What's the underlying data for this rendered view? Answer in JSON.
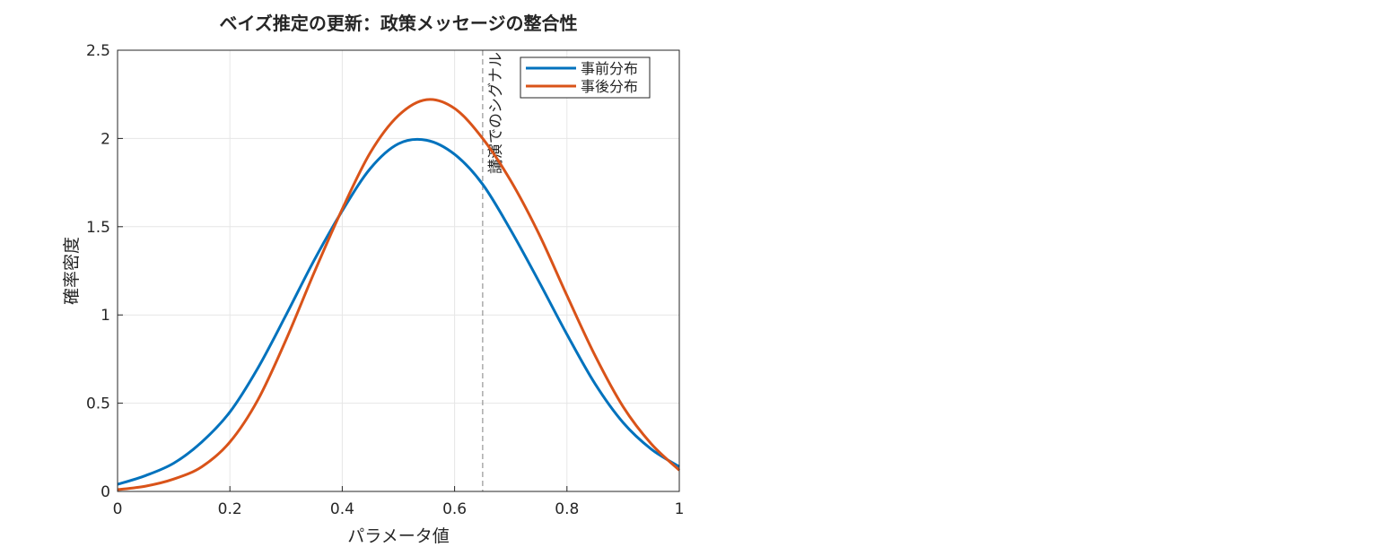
{
  "chart_data": {
    "type": "line",
    "title": "ベイズ推定の更新：政策メッセージの整合性",
    "xlabel": "パラメータ値",
    "ylabel": "確率密度",
    "xlim": [
      0,
      1
    ],
    "ylim": [
      0,
      2.5
    ],
    "grid": true,
    "x_ticks": [
      0,
      0.2,
      0.4,
      0.6,
      0.8,
      1
    ],
    "y_ticks": [
      0,
      0.5,
      1,
      1.5,
      2,
      2.5
    ],
    "x_tick_labels": [
      "0",
      "0.2",
      "0.4",
      "0.6",
      "0.8",
      "1"
    ],
    "y_tick_labels": [
      "0",
      "0.5",
      "1",
      "1.5",
      "2",
      "2.5"
    ],
    "legend_position": "top-right",
    "x": [
      0,
      0.05,
      0.1,
      0.15,
      0.2,
      0.25,
      0.3,
      0.35,
      0.4,
      0.45,
      0.5,
      0.55,
      0.6,
      0.65,
      0.7,
      0.75,
      0.8,
      0.85,
      0.9,
      0.95,
      1
    ],
    "series": [
      {
        "name": "事前分布",
        "color": "#0072BD",
        "values": [
          0.04,
          0.09,
          0.16,
          0.28,
          0.45,
          0.7,
          1.0,
          1.31,
          1.59,
          1.83,
          1.97,
          1.99,
          1.91,
          1.74,
          1.48,
          1.19,
          0.89,
          0.61,
          0.39,
          0.24,
          0.14
        ]
      },
      {
        "name": "事後分布",
        "color": "#D95319",
        "values": [
          0.01,
          0.03,
          0.07,
          0.14,
          0.28,
          0.52,
          0.86,
          1.24,
          1.6,
          1.92,
          2.13,
          2.22,
          2.17,
          2.0,
          1.76,
          1.46,
          1.11,
          0.77,
          0.48,
          0.27,
          0.12
        ]
      }
    ],
    "annotations": [
      {
        "type": "vline",
        "x": 0.65,
        "label": "講演でのシグナル",
        "style": "dashed",
        "color": "#808080"
      }
    ]
  }
}
